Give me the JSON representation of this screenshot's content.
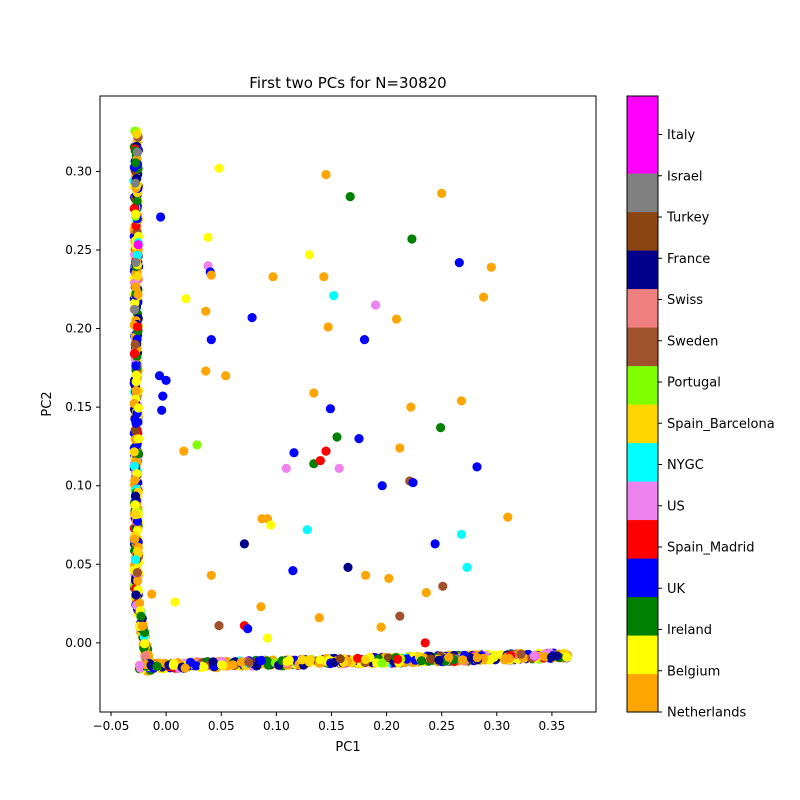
{
  "chart_data": {
    "type": "scatter",
    "title": "First two PCs for N=30820",
    "xlabel": "PC1",
    "ylabel": "PC2",
    "xlim": [
      -0.06,
      0.39
    ],
    "ylim": [
      -0.044,
      0.348
    ],
    "xticks": [
      -0.05,
      0.0,
      0.05,
      0.1,
      0.15,
      0.2,
      0.25,
      0.3,
      0.35
    ],
    "xtick_labels": [
      "−0.05",
      "0.00",
      "0.05",
      "0.10",
      "0.15",
      "0.20",
      "0.25",
      "0.30",
      "0.35"
    ],
    "yticks": [
      0.0,
      0.05,
      0.1,
      0.15,
      0.2,
      0.25,
      0.3
    ],
    "ytick_labels": [
      "0.00",
      "0.05",
      "0.10",
      "0.15",
      "0.20",
      "0.25",
      "0.30"
    ],
    "grid": false,
    "legend_placement": "colorbar-right",
    "categories": [
      {
        "name": "Netherlands",
        "color": "#FFA500"
      },
      {
        "name": "Belgium",
        "color": "#FFFF00"
      },
      {
        "name": "Ireland",
        "color": "#008000"
      },
      {
        "name": "UK",
        "color": "#0000FF"
      },
      {
        "name": "Spain_Madrid",
        "color": "#FF0000"
      },
      {
        "name": "US",
        "color": "#EE82EE"
      },
      {
        "name": "NYGC",
        "color": "#00FFFF"
      },
      {
        "name": "Spain_Barcelona",
        "color": "#FFD700"
      },
      {
        "name": "Portugal",
        "color": "#7FFF00"
      },
      {
        "name": "Sweden",
        "color": "#A0522D"
      },
      {
        "name": "Swiss",
        "color": "#F08080"
      },
      {
        "name": "France",
        "color": "#00008B"
      },
      {
        "name": "Turkey",
        "color": "#8B4513"
      },
      {
        "name": "Israel",
        "color": "#808080"
      },
      {
        "name": "Italy",
        "color": "#FF00FF"
      }
    ],
    "scattered_points": [
      [
        0.048,
        0.302,
        1
      ],
      [
        0.145,
        0.298,
        0
      ],
      [
        0.167,
        0.284,
        2
      ],
      [
        0.25,
        0.286,
        0
      ],
      [
        -0.005,
        0.271,
        3
      ],
      [
        0.038,
        0.258,
        1
      ],
      [
        0.13,
        0.247,
        1
      ],
      [
        0.223,
        0.257,
        2
      ],
      [
        0.266,
        0.242,
        3
      ],
      [
        0.295,
        0.239,
        0
      ],
      [
        0.038,
        0.24,
        5
      ],
      [
        0.04,
        0.236,
        3
      ],
      [
        0.041,
        0.234,
        0
      ],
      [
        0.097,
        0.233,
        0
      ],
      [
        0.143,
        0.233,
        0
      ],
      [
        0.152,
        0.221,
        6
      ],
      [
        0.19,
        0.215,
        5
      ],
      [
        0.018,
        0.219,
        1
      ],
      [
        0.036,
        0.211,
        0
      ],
      [
        0.078,
        0.207,
        3
      ],
      [
        0.147,
        0.201,
        0
      ],
      [
        0.209,
        0.206,
        0
      ],
      [
        0.288,
        0.22,
        0
      ],
      [
        0.041,
        0.193,
        3
      ],
      [
        0.18,
        0.193,
        3
      ],
      [
        -0.006,
        0.17,
        3
      ],
      [
        0.0,
        0.167,
        3
      ],
      [
        0.036,
        0.173,
        0
      ],
      [
        0.054,
        0.17,
        0
      ],
      [
        -0.003,
        0.157,
        3
      ],
      [
        -0.004,
        0.148,
        3
      ],
      [
        0.134,
        0.159,
        0
      ],
      [
        0.149,
        0.149,
        3
      ],
      [
        0.222,
        0.15,
        0
      ],
      [
        0.268,
        0.154,
        0
      ],
      [
        0.249,
        0.137,
        2
      ],
      [
        0.155,
        0.131,
        2
      ],
      [
        0.175,
        0.13,
        3
      ],
      [
        0.028,
        0.126,
        8
      ],
      [
        0.016,
        0.122,
        0
      ],
      [
        0.116,
        0.121,
        3
      ],
      [
        0.145,
        0.122,
        4
      ],
      [
        0.212,
        0.124,
        0
      ],
      [
        0.109,
        0.111,
        5
      ],
      [
        0.134,
        0.114,
        2
      ],
      [
        0.14,
        0.116,
        4
      ],
      [
        0.157,
        0.111,
        5
      ],
      [
        0.282,
        0.112,
        3
      ],
      [
        0.196,
        0.1,
        3
      ],
      [
        0.221,
        0.103,
        9
      ],
      [
        0.224,
        0.102,
        3
      ],
      [
        0.087,
        0.079,
        0
      ],
      [
        0.092,
        0.079,
        0
      ],
      [
        0.095,
        0.075,
        1
      ],
      [
        0.128,
        0.072,
        6
      ],
      [
        0.31,
        0.08,
        0
      ],
      [
        0.071,
        0.063,
        11
      ],
      [
        0.244,
        0.063,
        3
      ],
      [
        0.268,
        0.069,
        6
      ],
      [
        0.115,
        0.046,
        3
      ],
      [
        0.165,
        0.048,
        11
      ],
      [
        0.273,
        0.048,
        6
      ],
      [
        0.041,
        0.043,
        0
      ],
      [
        0.181,
        0.043,
        0
      ],
      [
        0.202,
        0.041,
        0
      ],
      [
        0.236,
        0.032,
        0
      ],
      [
        0.251,
        0.036,
        9
      ],
      [
        -0.013,
        0.031,
        0
      ],
      [
        0.008,
        0.026,
        1
      ],
      [
        0.086,
        0.023,
        0
      ],
      [
        0.139,
        0.016,
        0
      ],
      [
        0.048,
        0.011,
        9
      ],
      [
        0.071,
        0.011,
        4
      ],
      [
        0.074,
        0.009,
        3
      ],
      [
        0.195,
        0.01,
        0
      ],
      [
        0.212,
        0.017,
        9
      ],
      [
        0.092,
        0.003,
        1
      ],
      [
        0.235,
        0.0,
        4
      ]
    ],
    "clusters": [
      {
        "shape": "vertical-arm",
        "x_center": -0.027,
        "y_range": [
          -0.018,
          0.326
        ],
        "note": "dense band of all groups along PC2"
      },
      {
        "shape": "horizontal-arm",
        "y_center": -0.011,
        "x_range": [
          -0.025,
          0.365
        ],
        "note": "dense band of all groups along PC1"
      }
    ],
    "colorbar_labels": [
      "Netherlands",
      "Belgium",
      "Ireland",
      "UK",
      "Spain_Madrid",
      "US",
      "NYGC",
      "Spain_Barcelona",
      "Portugal",
      "Sweden",
      "Swiss",
      "France",
      "Turkey",
      "Israel",
      "Italy"
    ]
  }
}
